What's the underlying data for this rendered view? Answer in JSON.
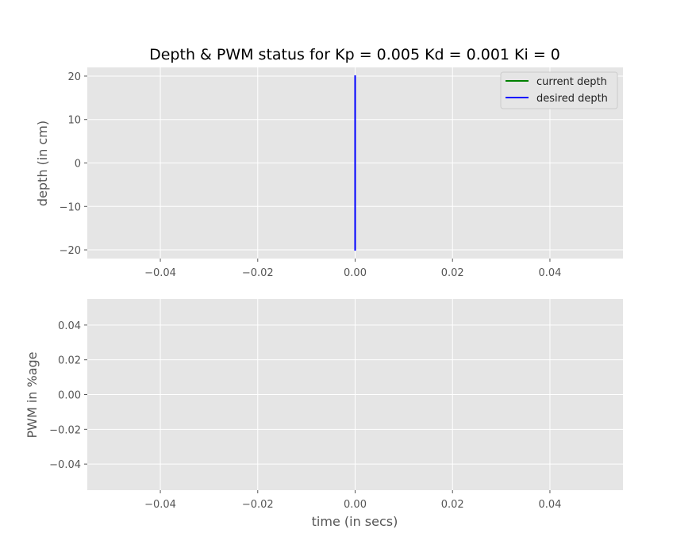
{
  "title": "Depth & PWM status for Kp = 0.005 Kd = 0.001 Ki = 0",
  "colors": {
    "background": "#e5e5e5",
    "grid": "#ffffff",
    "current": "#008000",
    "desired": "#0000ff"
  },
  "chart_data": [
    {
      "type": "line",
      "title": "Depth & PWM status for Kp = 0.005 Kd = 0.001 Ki = 0",
      "xlabel": "",
      "ylabel": "depth (in cm)",
      "xlim": [
        -0.055,
        0.055
      ],
      "ylim": [
        -22,
        22
      ],
      "xticks": [
        -0.04,
        -0.02,
        0.0,
        0.02,
        0.04
      ],
      "xtick_labels": [
        "−0.04",
        "−0.02",
        "0.00",
        "0.02",
        "0.04"
      ],
      "yticks": [
        -20,
        -10,
        0,
        10,
        20
      ],
      "ytick_labels": [
        "−20",
        "−10",
        "0",
        "10",
        "20"
      ],
      "grid": true,
      "legend": "top-right",
      "series": [
        {
          "name": "current depth",
          "color": "#008000",
          "x": [
            0,
            0
          ],
          "y": [
            0,
            0
          ]
        },
        {
          "name": "desired depth",
          "color": "#0000ff",
          "x": [
            0,
            0
          ],
          "y": [
            -20,
            20
          ]
        }
      ]
    },
    {
      "type": "line",
      "title": "",
      "xlabel": "time (in secs)",
      "ylabel": "PWM in %age",
      "xlim": [
        -0.055,
        0.055
      ],
      "ylim": [
        -0.055,
        0.055
      ],
      "xticks": [
        -0.04,
        -0.02,
        0.0,
        0.02,
        0.04
      ],
      "xtick_labels": [
        "−0.04",
        "−0.02",
        "0.00",
        "0.02",
        "0.04"
      ],
      "yticks": [
        -0.04,
        -0.02,
        0.0,
        0.02,
        0.04
      ],
      "ytick_labels": [
        "−0.04",
        "−0.02",
        "0.00",
        "0.02",
        "0.04"
      ],
      "grid": true,
      "series": []
    }
  ]
}
